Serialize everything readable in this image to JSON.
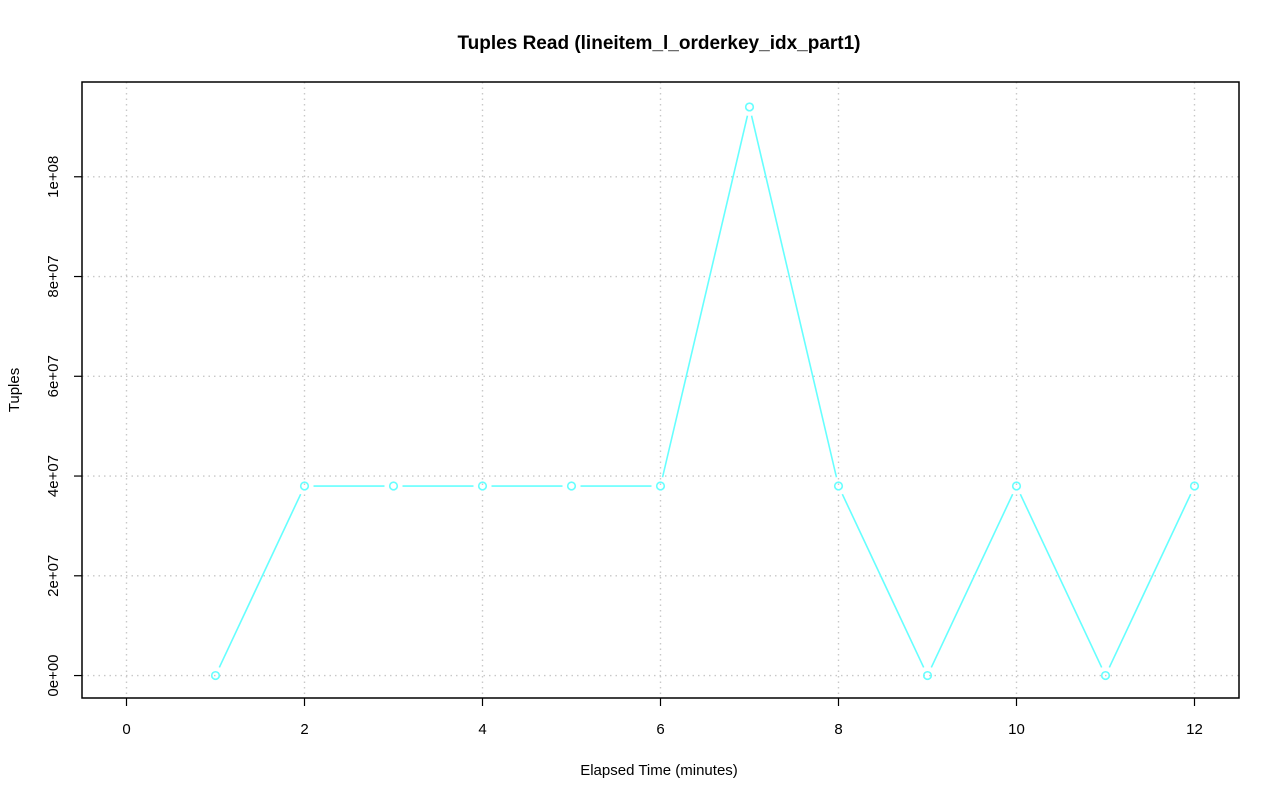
{
  "chart_data": {
    "type": "line",
    "title": "Tuples Read (lineitem_l_orderkey_idx_part1)",
    "xlabel": "Elapsed Time (minutes)",
    "ylabel": "Tuples",
    "xlim": [
      -0.5,
      12.5
    ],
    "ylim": [
      -4500000,
      119000000
    ],
    "x_ticks": [
      0,
      2,
      4,
      6,
      8,
      10,
      12
    ],
    "x_tick_labels": [
      "0",
      "2",
      "4",
      "6",
      "8",
      "10",
      "12"
    ],
    "y_ticks": [
      0,
      20000000,
      40000000,
      60000000,
      80000000,
      100000000
    ],
    "y_tick_labels": [
      "0e+00",
      "2e+07",
      "4e+07",
      "6e+07",
      "8e+07",
      "1e+08"
    ],
    "grid": true,
    "series": [
      {
        "color": "#66ffff",
        "marker": "circle",
        "x": [
          1,
          2,
          3,
          4,
          5,
          6,
          7,
          8,
          9,
          10,
          11,
          12
        ],
        "y": [
          0,
          38000000,
          38000000,
          38000000,
          38000000,
          38000000,
          114000000,
          38000000,
          0,
          38000000,
          0,
          38000000
        ]
      }
    ]
  }
}
